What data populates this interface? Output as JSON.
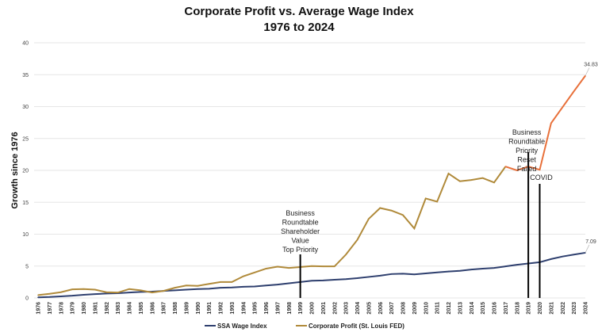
{
  "chart_data": {
    "type": "line",
    "title": "Corporate Profit vs. Average Wage Index",
    "subtitle": "1976 to 2024",
    "xlabel": "",
    "ylabel": "Growth since 1976",
    "ylim": [
      0,
      40
    ],
    "yticks": [
      0,
      5,
      10,
      15,
      20,
      25,
      30,
      35,
      40
    ],
    "grid": true,
    "legend_position": "bottom",
    "x": [
      "1976",
      "1977",
      "1978",
      "1979",
      "1980",
      "1981",
      "1982",
      "1983",
      "1984",
      "1985",
      "1986",
      "1987",
      "1988",
      "1989",
      "1990",
      "1991",
      "1992",
      "1993",
      "1994",
      "1995",
      "1996",
      "1997",
      "1998",
      "1999",
      "2000",
      "2001",
      "2002",
      "2003",
      "2004",
      "2005",
      "2006",
      "2007",
      "2008",
      "2009",
      "2010",
      "2011",
      "2012",
      "2013",
      "2014",
      "2015",
      "2016",
      "2017",
      "2018",
      "2019",
      "2020",
      "2021",
      "2022",
      "2023",
      "2024"
    ],
    "series": [
      {
        "name": "SSA Wage Index",
        "color": "#2e3f6e",
        "values": [
          0.1,
          0.15,
          0.25,
          0.35,
          0.5,
          0.6,
          0.7,
          0.75,
          0.85,
          0.95,
          1.0,
          1.1,
          1.2,
          1.3,
          1.4,
          1.45,
          1.6,
          1.65,
          1.75,
          1.8,
          1.95,
          2.1,
          2.3,
          2.5,
          2.7,
          2.75,
          2.85,
          2.95,
          3.1,
          3.3,
          3.5,
          3.75,
          3.8,
          3.7,
          3.85,
          4.0,
          4.15,
          4.25,
          4.45,
          4.6,
          4.7,
          4.95,
          5.2,
          5.4,
          5.6,
          6.1,
          6.5,
          6.8,
          7.09
        ],
        "end_label": "7.09"
      },
      {
        "name": "Corporate Profit (St. Louis FED)",
        "color": "#b08a3a",
        "color_recent": "#e8703a",
        "values": [
          0.45,
          0.65,
          0.9,
          1.35,
          1.4,
          1.3,
          0.9,
          0.85,
          1.4,
          1.2,
          0.85,
          1.1,
          1.6,
          1.95,
          1.9,
          2.2,
          2.5,
          2.5,
          3.4,
          4.0,
          4.6,
          4.9,
          4.7,
          4.85,
          5.0,
          4.95,
          4.95,
          6.8,
          9.1,
          12.4,
          14.1,
          13.7,
          13.0,
          10.9,
          15.6,
          15.1,
          19.5,
          18.3,
          18.5,
          18.8,
          18.1,
          20.6,
          20.0,
          20.6,
          20.1,
          27.4,
          29.9,
          32.4,
          34.83
        ],
        "end_label": "34.83"
      }
    ],
    "annotations": [
      {
        "x": "1999",
        "lines": [
          "Business",
          "Roundtable",
          "Shareholder",
          "Value",
          "Top Priority"
        ]
      },
      {
        "x": "2019",
        "lines": [
          "Business",
          "Roundtable",
          "Priority",
          "Reset",
          "Failed"
        ]
      },
      {
        "x": "2020",
        "lines": [
          "COVID"
        ]
      }
    ]
  }
}
